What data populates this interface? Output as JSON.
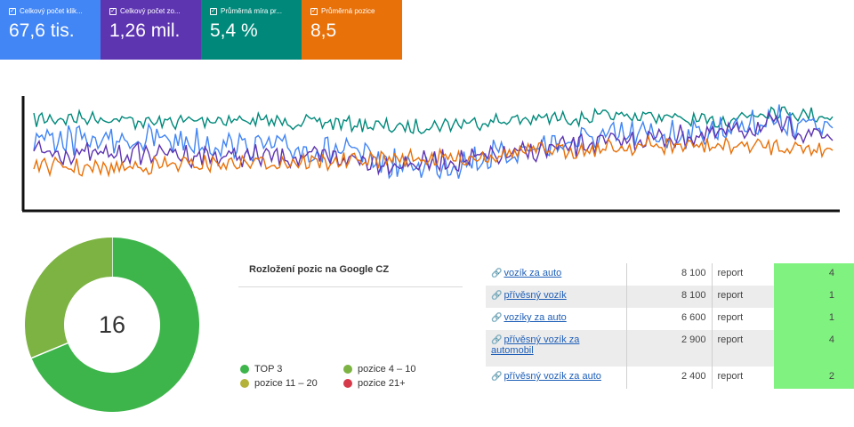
{
  "cards": [
    {
      "label": "Celkový počet klik...",
      "value": "67,6 tis.",
      "color": "#4285f4"
    },
    {
      "label": "Celkový počet zo...",
      "value": "1,26 mil.",
      "color": "#5e35b1"
    },
    {
      "label": "Průměrná míra pr...",
      "value": "5,4 %",
      "color": "#00897b"
    },
    {
      "label": "Průměrná pozice",
      "value": "8,5",
      "color": "#e8710a"
    }
  ],
  "chart_data": [
    {
      "type": "line",
      "series": [
        {
          "color": "#00897b"
        },
        {
          "color": "#4285f4"
        },
        {
          "color": "#5e35b1"
        },
        {
          "color": "#e8710a"
        }
      ]
    },
    {
      "type": "pie",
      "center_value": "16",
      "slices": [
        {
          "label": "TOP 3",
          "value": 11,
          "color": "#3db54a"
        },
        {
          "label": "pozice 4 – 10",
          "value": 5,
          "color": "#7cb342"
        },
        {
          "label": "pozice 11 – 20",
          "value": 0,
          "color": "#b5b23a"
        },
        {
          "label": "pozice 21+",
          "value": 0,
          "color": "#d63a4a"
        }
      ]
    }
  ],
  "distribution": {
    "title": "Rozložení pozic na Google CZ"
  },
  "keywords": [
    {
      "keyword": "vozík za auto",
      "volume": "8 100",
      "report": "report",
      "position": "4"
    },
    {
      "keyword": "přívěsný vozík",
      "volume": "8 100",
      "report": "report",
      "position": "1"
    },
    {
      "keyword": "vozíky za auto",
      "volume": "6 600",
      "report": "report",
      "position": "1"
    },
    {
      "keyword": "přívěsný vozík za automobil",
      "volume": "2 900",
      "report": "report",
      "position": "4"
    },
    {
      "keyword": "přívěsný vozík za auto",
      "volume": "2 400",
      "report": "report",
      "position": "2"
    }
  ],
  "icons": {
    "checkbox": "checkbox-checked-icon",
    "link": "link-icon"
  }
}
